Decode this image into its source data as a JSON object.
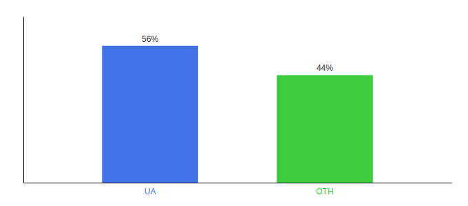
{
  "chart_data": {
    "type": "bar",
    "categories": [
      "UA",
      "OTH"
    ],
    "values": [
      56,
      44
    ],
    "value_labels": [
      "56%",
      "44%"
    ],
    "colors": [
      "#4472e8",
      "#3ecb3e"
    ],
    "ylim": [
      0,
      68
    ],
    "yticks": [],
    "tick_labels": "x",
    "data_labels": true,
    "grid": false
  }
}
